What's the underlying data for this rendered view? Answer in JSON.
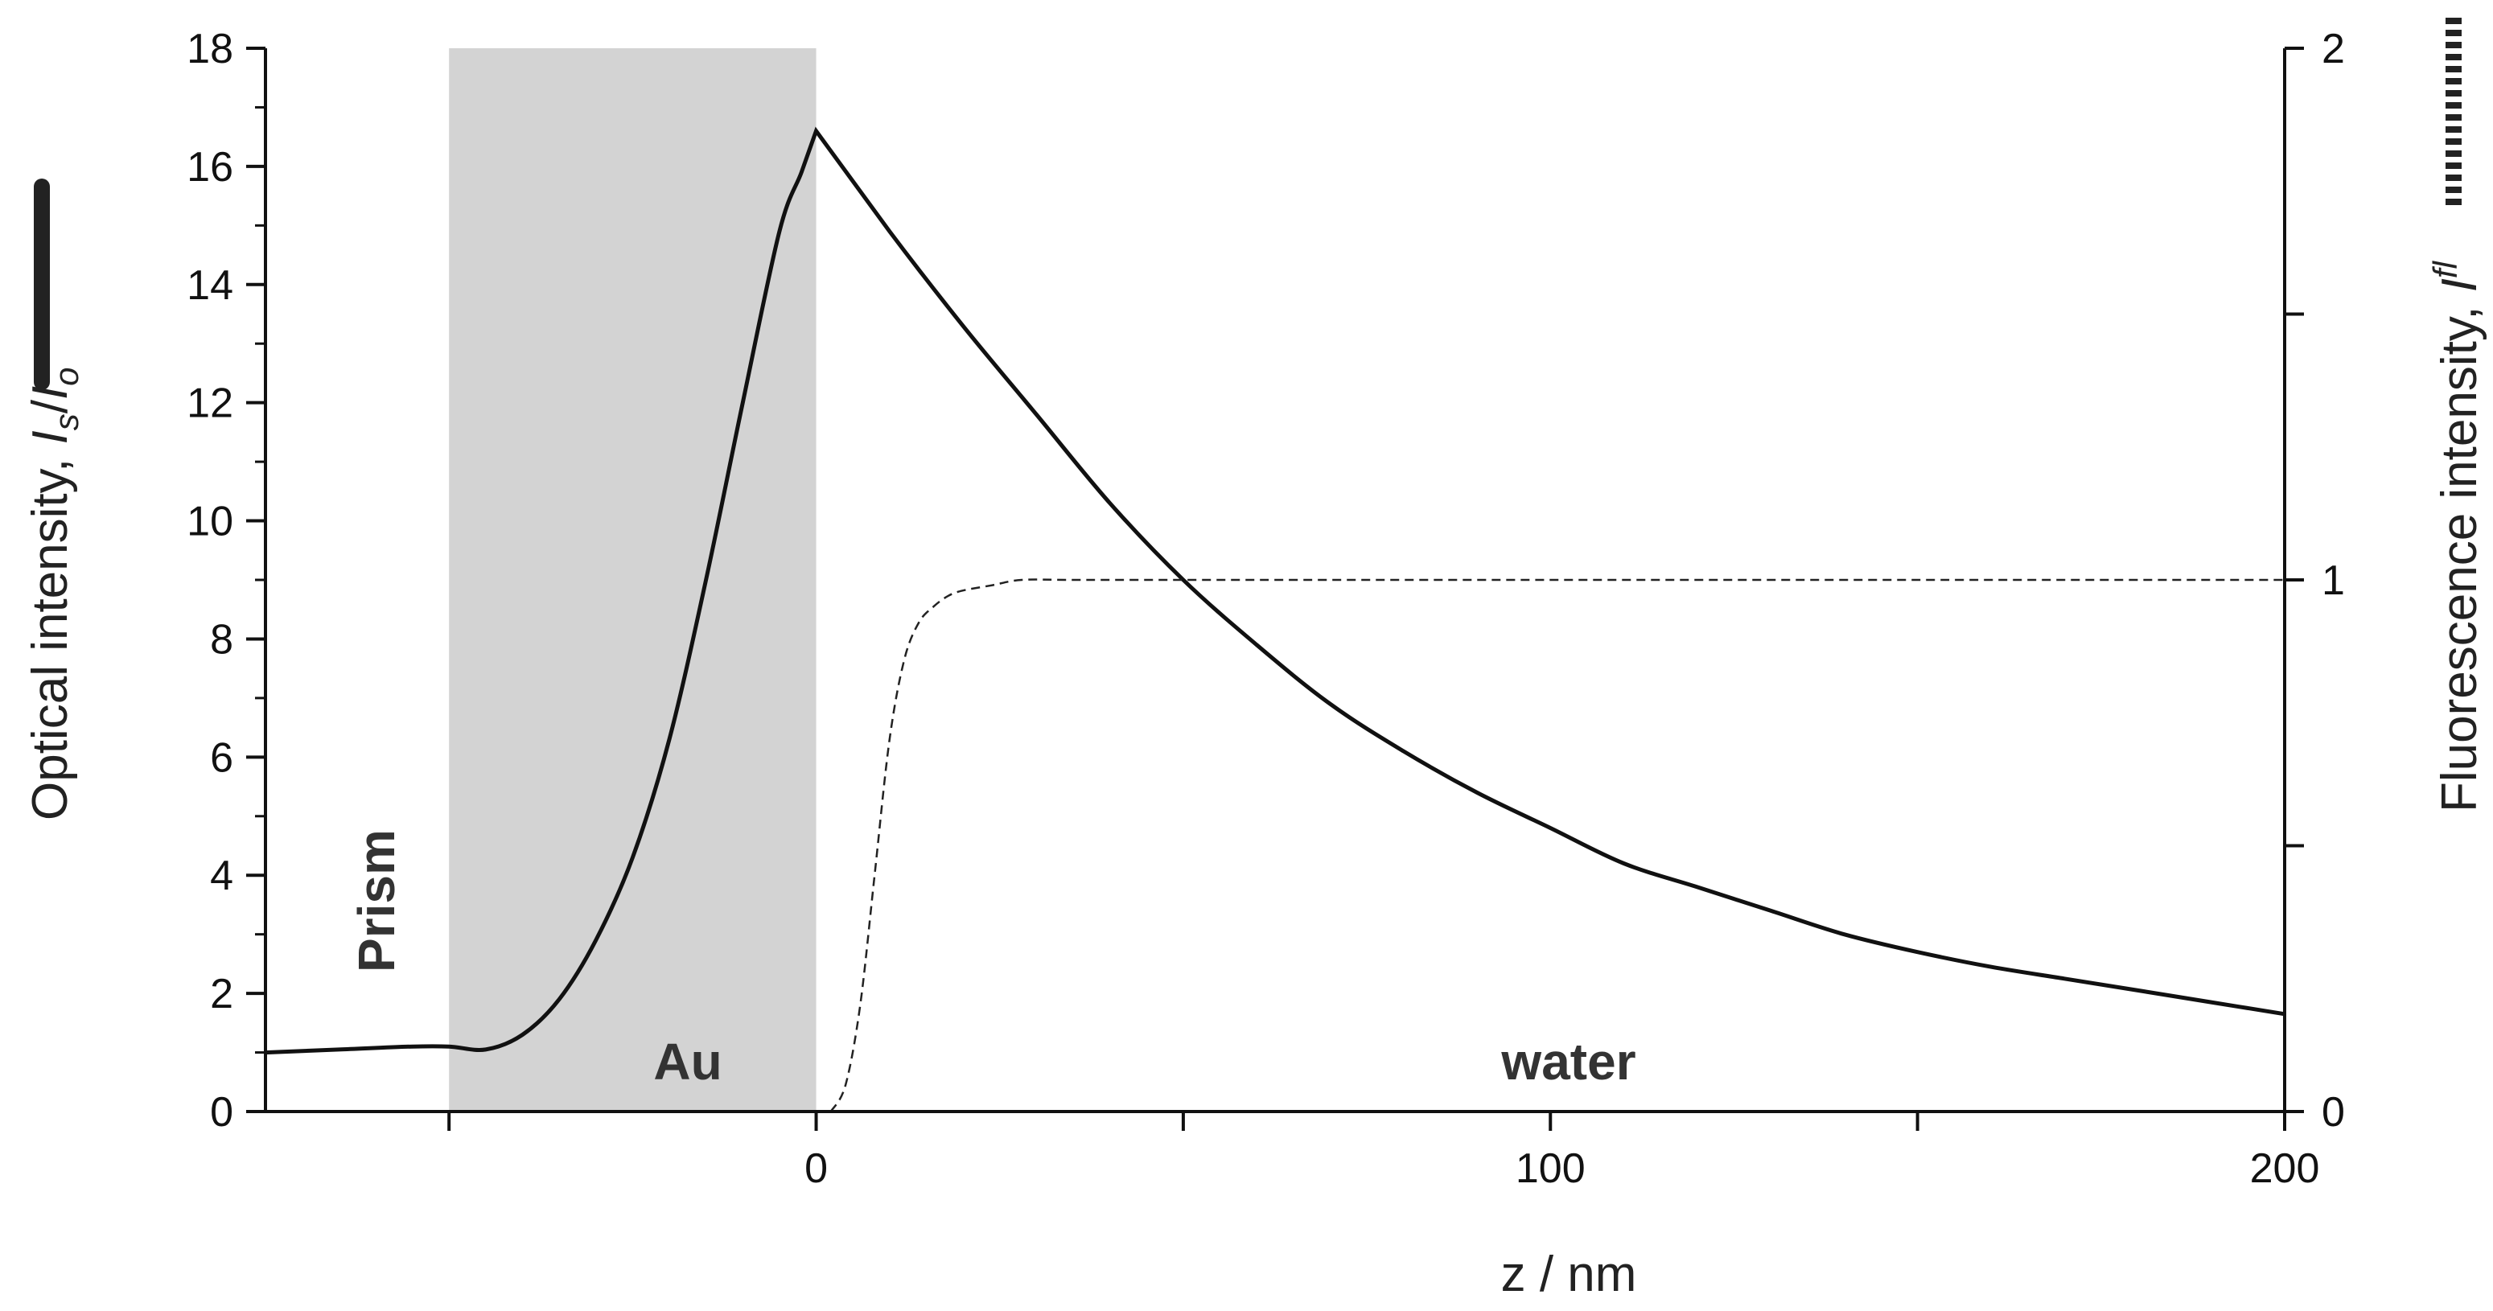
{
  "chart_data": {
    "type": "line",
    "xlabel": "z / nm",
    "ylabel_left": "Optical intensity, I_s/I_o",
    "ylabel_left_parts": {
      "main": "Optical intensity, ",
      "sym1": "I",
      "sub1": "s",
      "slash": "/",
      "sym2": "I",
      "sub2": "o"
    },
    "ylabel_right": "Fluorescence intensity, I^fl",
    "ylabel_right_parts": {
      "main": "Fluorescence intensity, ",
      "sym": "I",
      "sup": "fl"
    },
    "xlim": [
      -75,
      200
    ],
    "ylim_left": [
      0,
      18
    ],
    "ylim_right": [
      0,
      2
    ],
    "x_ticks": [
      -50,
      0,
      50,
      100,
      150,
      200
    ],
    "x_tick_labels": [
      "",
      "0",
      "",
      "100",
      "",
      "200"
    ],
    "y_left_ticks": [
      0,
      2,
      4,
      6,
      8,
      10,
      12,
      14,
      16,
      18
    ],
    "y_left_tick_labels": [
      "0",
      "2",
      "4",
      "6",
      "8",
      "10",
      "12",
      "14",
      "16",
      "18"
    ],
    "y_right_ticks": [
      0,
      0.5,
      1,
      1.5,
      2
    ],
    "y_right_tick_labels": [
      "0",
      "",
      "1",
      "",
      "2"
    ],
    "regions": [
      {
        "name": "Prism",
        "x_start": -75,
        "x_end": -50,
        "shaded": false
      },
      {
        "name": "Au",
        "x_start": -50,
        "x_end": 0,
        "shaded": true,
        "color": "#d3d3d3"
      },
      {
        "name": "water",
        "x_start": 0,
        "x_end": 200,
        "shaded": false
      }
    ],
    "series": [
      {
        "name": "Optical intensity",
        "axis": "left",
        "style": "solid",
        "color": "#111111",
        "x": [
          -75,
          -65,
          -55,
          -50,
          -45,
          -40,
          -35,
          -30,
          -25,
          -20,
          -15,
          -10,
          -5,
          -2,
          0,
          10,
          20,
          30,
          40,
          50,
          60,
          70,
          80,
          90,
          100,
          110,
          120,
          130,
          140,
          150,
          160,
          170,
          180,
          190,
          200
        ],
        "y": [
          1.0,
          1.05,
          1.1,
          1.1,
          1.05,
          1.3,
          1.9,
          2.9,
          4.3,
          6.3,
          9.0,
          12.0,
          14.9,
          15.9,
          16.6,
          14.9,
          13.3,
          11.8,
          10.3,
          9.0,
          7.9,
          6.9,
          6.1,
          5.4,
          4.8,
          4.2,
          3.8,
          3.4,
          3.0,
          2.7,
          2.45,
          2.25,
          2.05,
          1.85,
          1.65
        ]
      },
      {
        "name": "Fluorescence intensity",
        "axis": "right",
        "style": "dashed",
        "color": "#222222",
        "x": [
          2,
          4,
          6,
          8,
          10,
          12,
          14,
          16,
          18,
          20,
          24,
          28,
          35,
          50,
          100,
          150,
          200
        ],
        "y": [
          0,
          0.05,
          0.2,
          0.45,
          0.7,
          0.85,
          0.92,
          0.95,
          0.97,
          0.98,
          0.99,
          1.0,
          1.0,
          1.0,
          1.0,
          1.0,
          1.0
        ]
      }
    ],
    "legend": [
      {
        "series": "Optical intensity",
        "style": "solid-thick",
        "placement": "left-margin"
      },
      {
        "series": "Fluorescence intensity",
        "style": "dotted-thick",
        "placement": "right-margin"
      }
    ]
  }
}
